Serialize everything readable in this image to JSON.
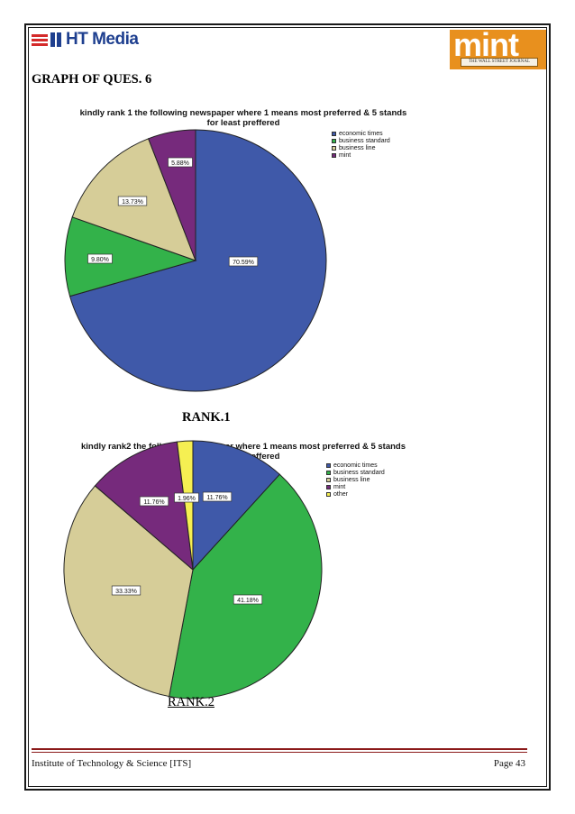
{
  "header": {
    "ht_logo_text": "HT Media",
    "mint_logo_text": "mint",
    "mint_logo_sub": "THE WALL STREET JOURNAL"
  },
  "heading": "GRAPH OF QUES. 6",
  "chart_data": [
    {
      "type": "pie",
      "title_line1": "kindly rank 1 the following newspaper where 1 means most preferred & 5 stands",
      "title_line2": "for least preffered",
      "categories": [
        "economic times",
        "business standard",
        "business line",
        "mint"
      ],
      "values": [
        70.59,
        9.8,
        13.73,
        5.88
      ],
      "labels": [
        "70.59%",
        "9.80%",
        "13.73%",
        "5.88%"
      ],
      "colors": [
        "#3f59a9",
        "#33b24a",
        "#d6cd98",
        "#762a7c"
      ],
      "legend_position": "top-right",
      "caption": "RANK.1"
    },
    {
      "type": "pie",
      "title_line1": "kindly rank2 the following newspaper where 1 means most preferred & 5 stands",
      "title_line2": "for least preffered",
      "categories": [
        "economic times",
        "business standard",
        "business line",
        "mint",
        "other"
      ],
      "values": [
        11.76,
        41.18,
        33.33,
        11.76,
        1.96
      ],
      "labels": [
        "11.76%",
        "41.18%",
        "33.33%",
        "11.76%",
        "1.96%"
      ],
      "colors": [
        "#3f59a9",
        "#33b24a",
        "#d6cd98",
        "#762a7c",
        "#f5ef52"
      ],
      "legend_position": "top-right",
      "caption": "RANK.2"
    }
  ],
  "footer": {
    "left": "Institute of Technology & Science [ITS]",
    "right": "Page 43"
  }
}
